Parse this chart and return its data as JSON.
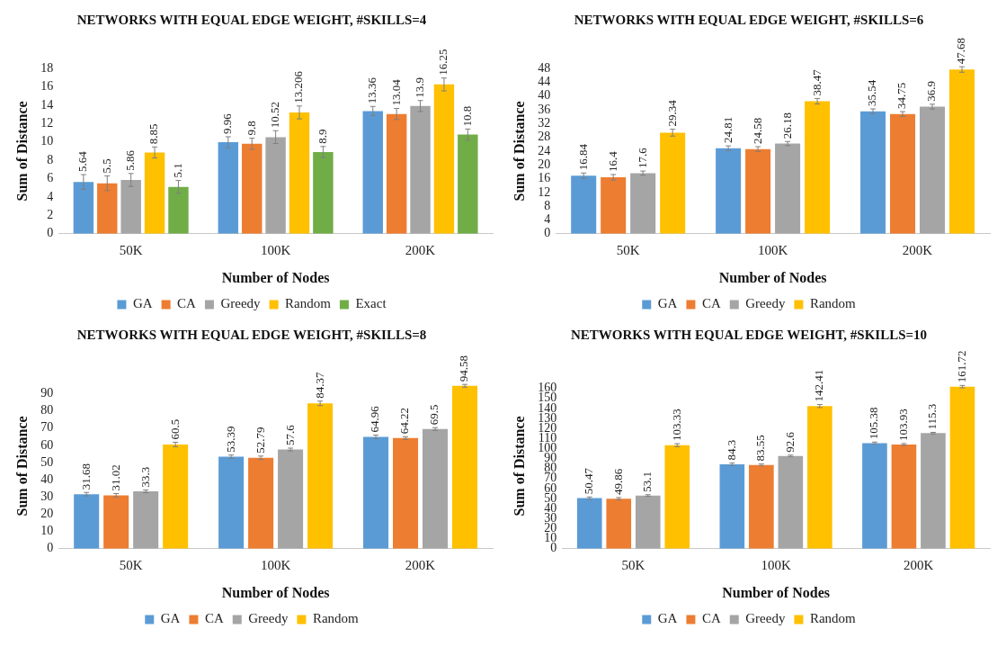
{
  "chart_data": [
    {
      "type": "bar",
      "title": "NETWORKS WITH EQUAL EDGE WEIGHT, #SKILLS=4",
      "xlabel": "Number of Nodes",
      "ylabel": "Sum of Distance",
      "categories": [
        "50K",
        "100K",
        "200K"
      ],
      "ylim": [
        0,
        18
      ],
      "yticks": [
        0,
        2,
        4,
        6,
        8,
        10,
        12,
        14,
        16,
        18
      ],
      "grid": false,
      "legend": "bottom",
      "data_labels": true,
      "series": [
        {
          "name": "GA",
          "color": "#5b9bd5",
          "values": [
            5.64,
            9.96,
            13.36
          ],
          "errors": [
            0.8,
            0.6,
            0.5
          ]
        },
        {
          "name": "CA",
          "color": "#ed7d31",
          "values": [
            5.5,
            9.8,
            13.04
          ],
          "errors": [
            0.8,
            0.6,
            0.6
          ]
        },
        {
          "name": "Greedy",
          "color": "#a5a5a5",
          "values": [
            5.86,
            10.52,
            13.9
          ],
          "errors": [
            0.7,
            0.7,
            0.6
          ]
        },
        {
          "name": "Random",
          "color": "#ffc000",
          "values": [
            8.85,
            13.206,
            16.25
          ],
          "errors": [
            0.6,
            0.7,
            0.7
          ]
        },
        {
          "name": "Exact",
          "color": "#70ad47",
          "values": [
            5.1,
            8.9,
            10.8
          ],
          "errors": [
            0.7,
            0.6,
            0.6
          ]
        }
      ]
    },
    {
      "type": "bar",
      "title": "NETWORKS WITH EQUAL EDGE WEIGHT, #SKILLS=6",
      "xlabel": "Number of Nodes",
      "ylabel": "Sum of Distance",
      "categories": [
        "50K",
        "100K",
        "200K"
      ],
      "ylim": [
        0,
        48
      ],
      "yticks": [
        0,
        4,
        8,
        12,
        16,
        20,
        24,
        28,
        32,
        36,
        40,
        44,
        48
      ],
      "grid": false,
      "legend": "bottom",
      "data_labels": true,
      "series": [
        {
          "name": "GA",
          "color": "#5b9bd5",
          "values": [
            16.84,
            24.81,
            35.54
          ],
          "errors": [
            0.8,
            0.7,
            0.7
          ]
        },
        {
          "name": "CA",
          "color": "#ed7d31",
          "values": [
            16.4,
            24.58,
            34.75
          ],
          "errors": [
            0.8,
            0.7,
            0.7
          ]
        },
        {
          "name": "Greedy",
          "color": "#a5a5a5",
          "values": [
            17.6,
            26.18,
            36.9
          ],
          "errors": [
            0.6,
            0.6,
            0.7
          ]
        },
        {
          "name": "Random",
          "color": "#ffc000",
          "values": [
            29.34,
            38.47,
            47.68
          ],
          "errors": [
            1,
            0.8,
            0.8
          ]
        }
      ]
    },
    {
      "type": "bar",
      "title": "NETWORKS WITH EQUAL EDGE WEIGHT, #SKILLS=8",
      "xlabel": "Number of Nodes",
      "ylabel": "Sum of Distance",
      "categories": [
        "50K",
        "100K",
        "200K"
      ],
      "ylim": [
        0,
        96
      ],
      "yticks": [
        0,
        10,
        20,
        30,
        40,
        50,
        60,
        70,
        80,
        90
      ],
      "grid": false,
      "legend": "bottom",
      "data_labels": true,
      "series": [
        {
          "name": "GA",
          "color": "#5b9bd5",
          "values": [
            31.68,
            53.39,
            64.96
          ],
          "errors": [
            1,
            1,
            1
          ]
        },
        {
          "name": "CA",
          "color": "#ed7d31",
          "values": [
            31.02,
            52.79,
            64.22
          ],
          "errors": [
            1,
            1,
            0.8
          ]
        },
        {
          "name": "Greedy",
          "color": "#a5a5a5",
          "values": [
            33.3,
            57.6,
            69.5
          ],
          "errors": [
            0.8,
            0.8,
            0.8
          ]
        },
        {
          "name": "Random",
          "color": "#ffc000",
          "values": [
            60.5,
            84.37,
            94.58
          ],
          "errors": [
            1.3,
            1.3,
            0.8
          ]
        }
      ]
    },
    {
      "type": "bar",
      "title": "NETWORKS WITH EQUAL EDGE WEIGHT, #SKILLS=10",
      "xlabel": "Number of Nodes",
      "ylabel": "Sum of Distance",
      "categories": [
        "50K",
        "100K",
        "200K"
      ],
      "ylim": [
        0,
        165
      ],
      "yticks": [
        0,
        10,
        20,
        30,
        40,
        50,
        60,
        70,
        80,
        90,
        100,
        110,
        120,
        130,
        140,
        150,
        160
      ],
      "grid": false,
      "legend": "bottom",
      "data_labels": true,
      "series": [
        {
          "name": "GA",
          "color": "#5b9bd5",
          "values": [
            50.47,
            84.3,
            105.38
          ],
          "errors": [
            1.2,
            1.2,
            1
          ]
        },
        {
          "name": "CA",
          "color": "#ed7d31",
          "values": [
            49.86,
            83.55,
            103.93
          ],
          "errors": [
            1.2,
            1,
            1
          ]
        },
        {
          "name": "Greedy",
          "color": "#a5a5a5",
          "values": [
            53.1,
            92.6,
            115.3
          ],
          "errors": [
            0.8,
            0.8,
            0.8
          ]
        },
        {
          "name": "Random",
          "color": "#ffc000",
          "values": [
            103.33,
            142.41,
            161.72
          ],
          "errors": [
            1.5,
            1.5,
            1.2
          ]
        }
      ]
    }
  ]
}
